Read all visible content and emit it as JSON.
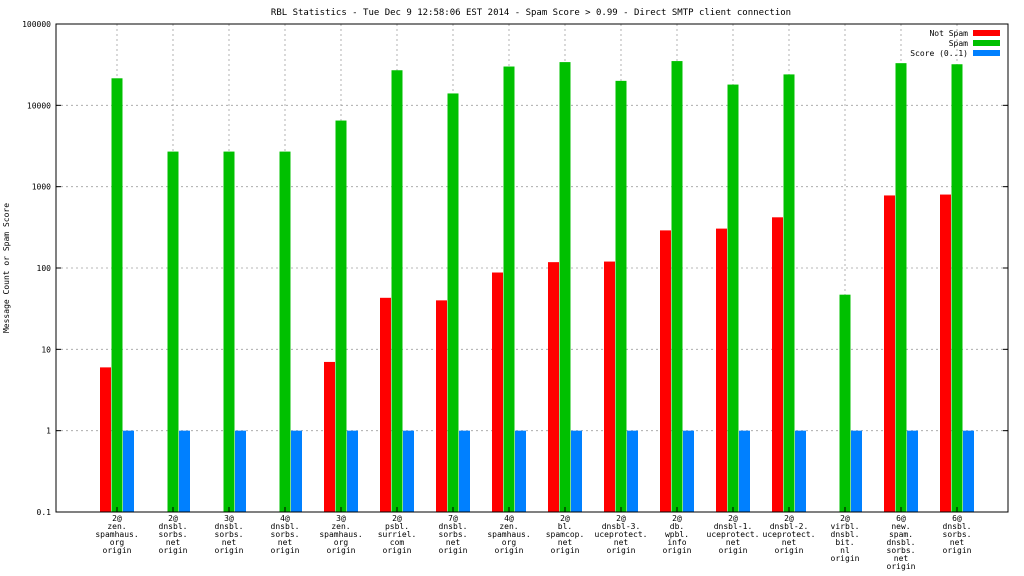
{
  "chart_data": {
    "type": "bar",
    "title": "RBL Statistics - Tue Dec  9 12:58:06 EST 2014 - Spam Score > 0.99 - Direct SMTP client connection",
    "ylabel": "Message Count or Spam Score",
    "xlabel": "",
    "yscale": "log",
    "ylim": [
      0.1,
      100000
    ],
    "yticks": [
      "0.1",
      "1",
      "10",
      "100",
      "1000",
      "10000",
      "100000"
    ],
    "grid": true,
    "legend_position": "top-right",
    "categories": [
      [
        "2@",
        "zen.",
        "spamhaus.",
        "org",
        "origin"
      ],
      [
        "2@",
        "dnsbl.",
        "sorbs.",
        "net",
        "origin"
      ],
      [
        "3@",
        "dnsbl.",
        "sorbs.",
        "net",
        "origin"
      ],
      [
        "4@",
        "dnsbl.",
        "sorbs.",
        "net",
        "origin"
      ],
      [
        "3@",
        "zen.",
        "spamhaus.",
        "org",
        "origin"
      ],
      [
        "2@",
        "psbl.",
        "surriel.",
        "com",
        "origin"
      ],
      [
        "7@",
        "dnsbl.",
        "sorbs.",
        "net",
        "origin"
      ],
      [
        "4@",
        "zen.",
        "spamhaus.",
        "org",
        "origin"
      ],
      [
        "2@",
        "bl.",
        "spamcop.",
        "net",
        "origin"
      ],
      [
        "2@",
        "dnsbl-3.",
        "uceprotect.",
        "net",
        "origin"
      ],
      [
        "2@",
        "db.",
        "wpbl.",
        "info",
        "origin"
      ],
      [
        "2@",
        "dnsbl-1.",
        "uceprotect.",
        "net",
        "origin"
      ],
      [
        "2@",
        "dnsbl-2.",
        "uceprotect.",
        "net",
        "origin"
      ],
      [
        "2@",
        "virbl.",
        "dnsbl.",
        "bit.",
        "nl",
        "origin"
      ],
      [
        "6@",
        "new.",
        "spam.",
        "dnsbl.",
        "sorbs.",
        "net",
        "origin"
      ],
      [
        "6@",
        "dnsbl.",
        "sorbs.",
        "net",
        "origin"
      ]
    ],
    "series": [
      {
        "name": "Not Spam",
        "color": "#ff0000",
        "values": [
          6,
          null,
          null,
          null,
          7,
          43,
          40,
          88,
          118,
          120,
          290,
          305,
          420,
          null,
          780,
          800
        ]
      },
      {
        "name": "Spam",
        "color": "#00c000",
        "values": [
          21500,
          2700,
          2700,
          2700,
          6500,
          27000,
          14000,
          30000,
          34000,
          20000,
          35000,
          18000,
          24000,
          47,
          33000,
          32000
        ]
      },
      {
        "name": "Score (0..1)",
        "color": "#0080ff",
        "values": [
          1,
          1,
          1,
          1,
          1,
          1,
          1,
          1,
          1,
          1,
          1,
          1,
          1,
          1,
          1,
          1
        ]
      }
    ]
  }
}
